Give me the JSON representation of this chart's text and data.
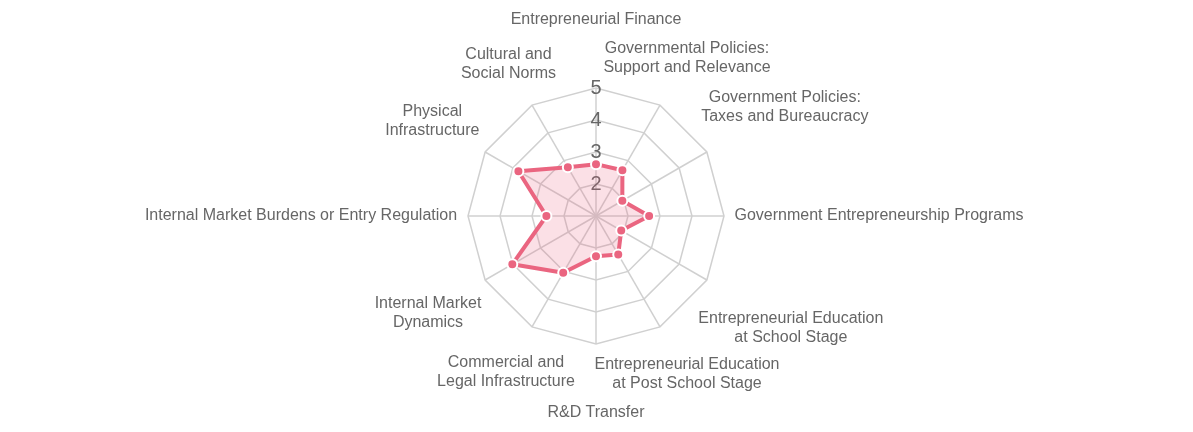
{
  "chart_data": {
    "type": "radar",
    "categories": [
      "Entrepreneurial Finance",
      "Governmental Policies: Support and Relevance",
      "Government Policies: Taxes and Bureaucracy",
      "Government Entrepreneurship Programs",
      "Entrepreneurial Education at School Stage",
      "Entrepreneurial Education at Post School Stage",
      "R&D Transfer",
      "Commercial and Legal Infrastructure",
      "Internal Market Dynamics",
      "Internal Market Burdens or Entry Regulation",
      "Physical Infrastructure",
      "Cultural and Social Norms"
    ],
    "series": [
      {
        "color": "#ea6580",
        "values": [
          2.62,
          2.65,
          1.95,
          2.66,
          1.91,
          2.39,
          2.26,
          3.05,
          4.02,
          2.55,
          3.8,
          2.76
        ]
      }
    ],
    "ylim": [
      1,
      5
    ],
    "yticks": [
      2,
      3,
      4,
      5
    ],
    "grid": true,
    "marker": "circle"
  }
}
